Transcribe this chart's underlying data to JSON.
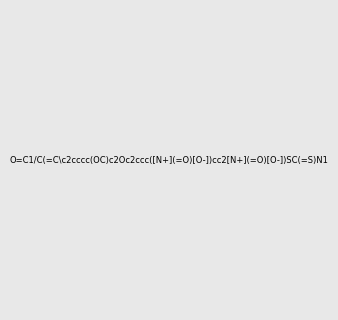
{
  "smiles": "O=C1/C(=C\\c2cccc(OC)c2Oc2ccc([N+](=O)[O-])cc2[N+](=O)[O-])SC(=S)N1",
  "bg_color": "#e8e8e8",
  "img_size": [
    300,
    300
  ]
}
